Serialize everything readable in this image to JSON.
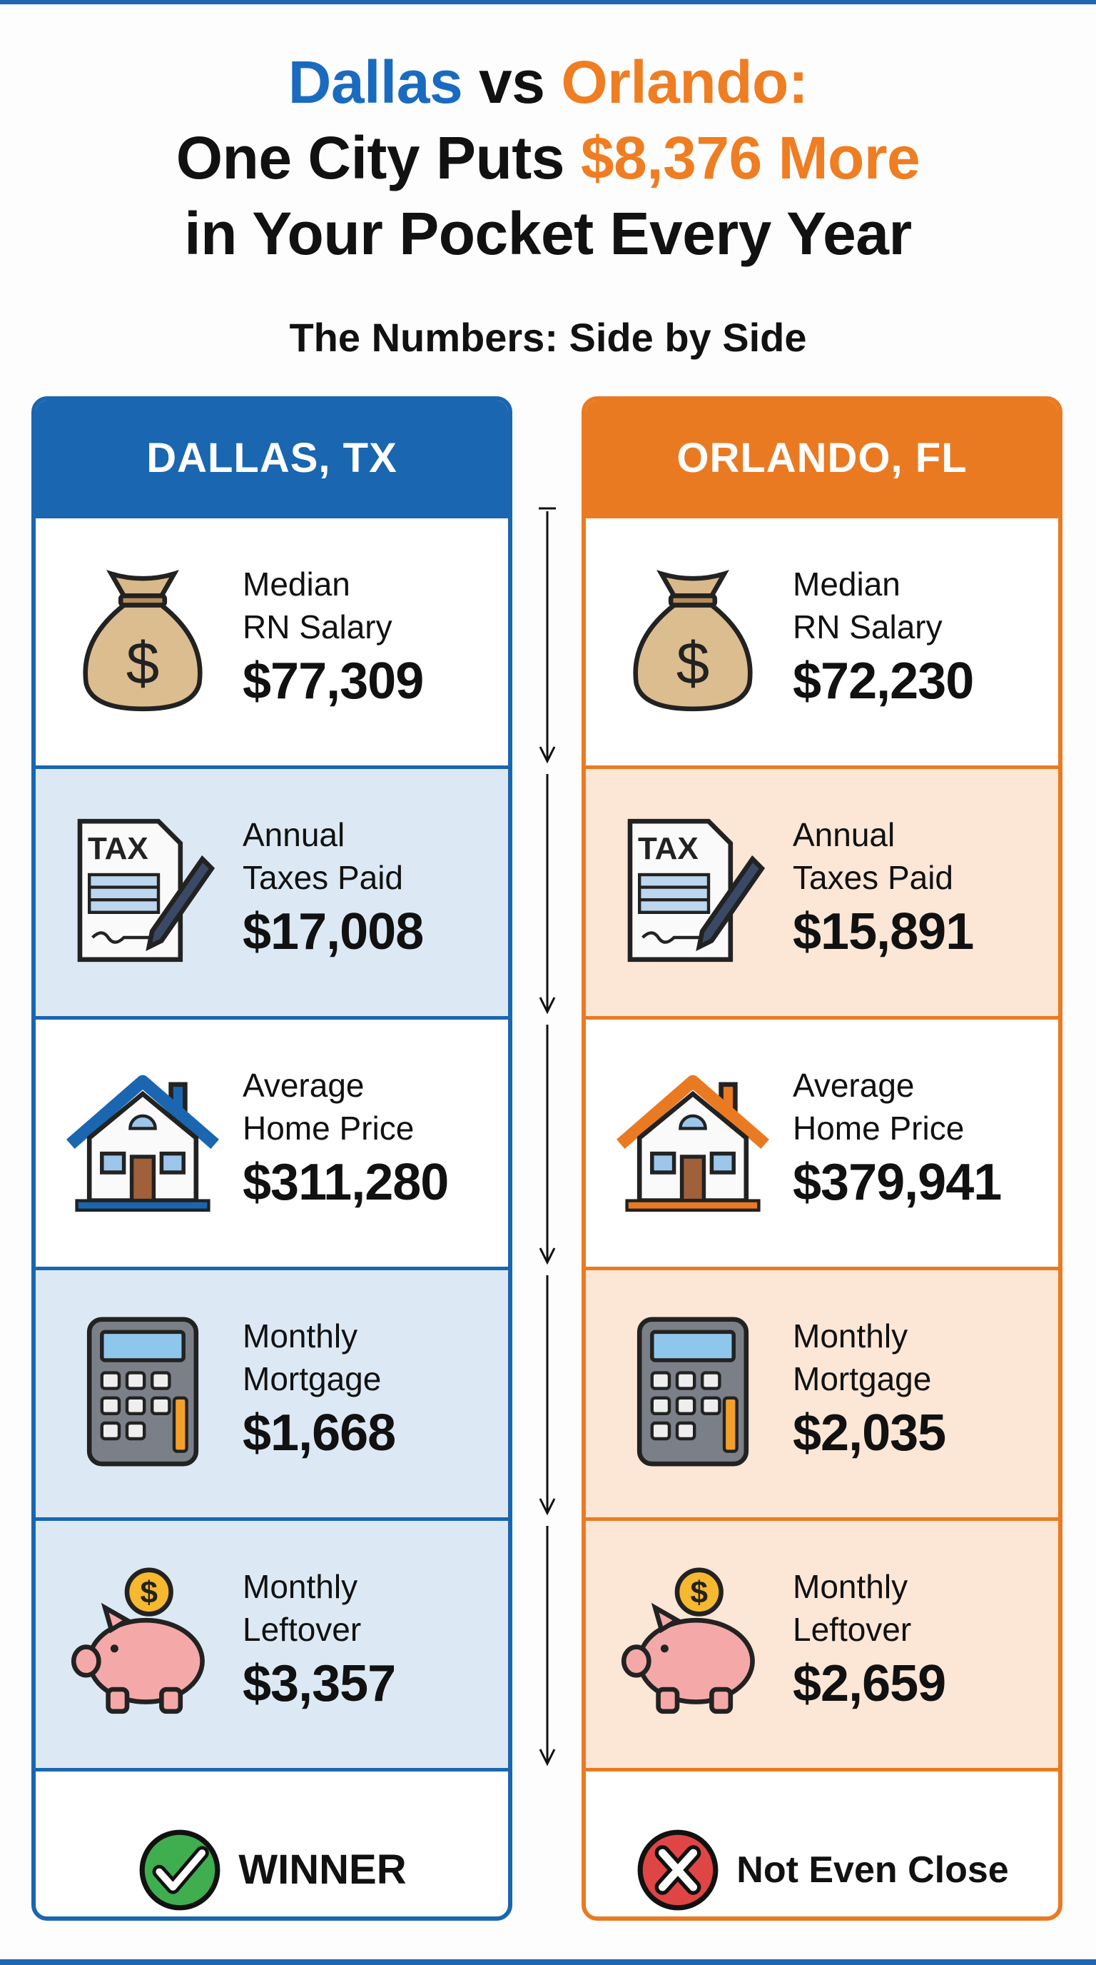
{
  "title": {
    "city_a": "Dallas",
    "vs": "vs",
    "city_b": "Orlando:",
    "line2_prefix": "One City Puts",
    "line2_amount": "$8,376 More",
    "line3": "in Your Pocket Every Year"
  },
  "subtitle": "The Numbers: Side by Side",
  "colors": {
    "dallas": "#1a66b0",
    "orlando": "#ea7a22",
    "winner": "#3fae4f",
    "loser": "#e04545"
  },
  "dallas": {
    "header": "DALLAS, TX",
    "rows": [
      {
        "icon": "money-bag-icon",
        "label1": "Median",
        "label2": "RN Salary",
        "value": "$77,309"
      },
      {
        "icon": "tax-form-icon",
        "label1": "Annual",
        "label2": "Taxes Paid",
        "value": "$17,008"
      },
      {
        "icon": "house-icon",
        "label1": "Average",
        "label2": "Home Price",
        "value": "$311,280"
      },
      {
        "icon": "calculator-icon",
        "label1": "Monthly",
        "label2": "Mortgage",
        "value": "$1,668"
      },
      {
        "icon": "piggy-bank-icon",
        "label1": "Monthly",
        "label2": "Leftover",
        "value": "$3,357"
      }
    ],
    "verdict": "WINNER"
  },
  "orlando": {
    "header": "ORLANDO, FL",
    "rows": [
      {
        "icon": "money-bag-icon",
        "label1": "Median",
        "label2": "RN Salary",
        "value": "$72,230"
      },
      {
        "icon": "tax-form-icon",
        "label1": "Annual",
        "label2": "Taxes Paid",
        "value": "$15,891"
      },
      {
        "icon": "house-icon",
        "label1": "Average",
        "label2": "Home Price",
        "value": "$379,941"
      },
      {
        "icon": "calculator-icon",
        "label1": "Monthly",
        "label2": "Mortgage",
        "value": "$2,035"
      },
      {
        "icon": "piggy-bank-icon",
        "label1": "Monthly",
        "label2": "Leftover",
        "value": "$2,659"
      }
    ],
    "verdict": "Not Even Close"
  },
  "tax_icon_text": "TAX",
  "coin_symbol": "$"
}
